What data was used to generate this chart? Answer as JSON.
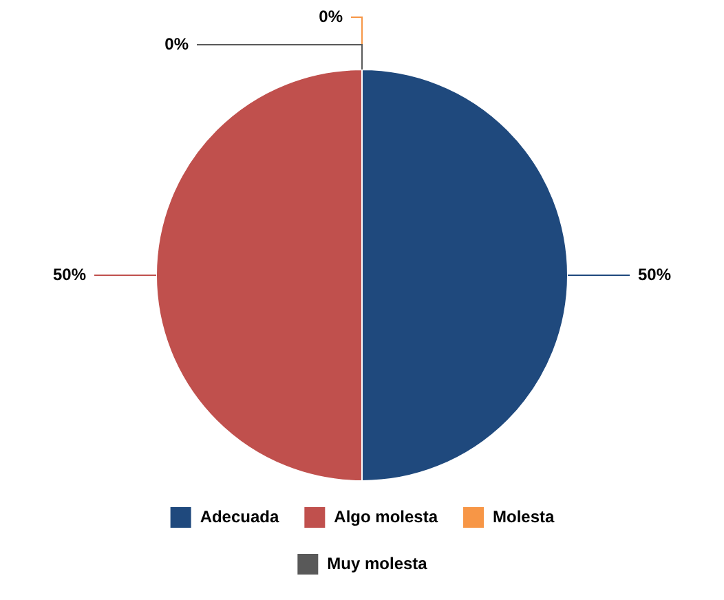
{
  "chart_data": {
    "type": "pie",
    "categories": [
      "Adecuada",
      "Algo molesta",
      "Molesta",
      "Muy molesta"
    ],
    "values": [
      50,
      50,
      0,
      0
    ],
    "colors": [
      "#1f497d",
      "#c0504d",
      "#f79646",
      "#595959"
    ],
    "value_labels": [
      "50%",
      "50%",
      "0%",
      "0%"
    ],
    "legend": "bottom"
  }
}
